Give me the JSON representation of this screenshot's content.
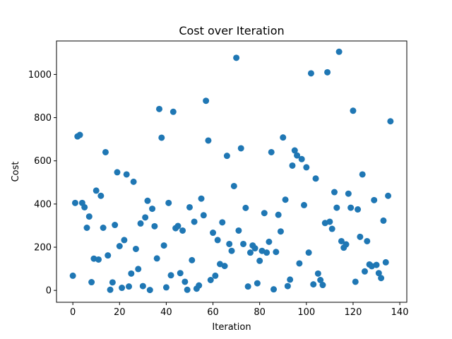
{
  "chart_data": {
    "type": "scatter",
    "title": "Cost over Iteration",
    "xlabel": "Iteration",
    "ylabel": "Cost",
    "xlim": [
      -7,
      143
    ],
    "ylim": [
      -55,
      1155
    ],
    "xticks": [
      0,
      20,
      40,
      60,
      80,
      100,
      120,
      140
    ],
    "yticks": [
      0,
      200,
      400,
      600,
      800,
      1000
    ],
    "grid": false,
    "marker_color": "#1f77b4",
    "series": [
      {
        "points": [
          [
            0,
            68
          ],
          [
            1,
            405
          ],
          [
            2,
            713
          ],
          [
            3,
            720
          ],
          [
            4,
            405
          ],
          [
            5,
            385
          ],
          [
            6,
            290
          ],
          [
            7,
            342
          ],
          [
            8,
            38
          ],
          [
            9,
            147
          ],
          [
            10,
            462
          ],
          [
            11,
            143
          ],
          [
            12,
            438
          ],
          [
            13,
            290
          ],
          [
            14,
            640
          ],
          [
            15,
            162
          ],
          [
            16,
            3
          ],
          [
            17,
            37
          ],
          [
            18,
            303
          ],
          [
            19,
            547
          ],
          [
            20,
            205
          ],
          [
            21,
            12
          ],
          [
            22,
            233
          ],
          [
            23,
            537
          ],
          [
            24,
            18
          ],
          [
            25,
            78
          ],
          [
            26,
            503
          ],
          [
            27,
            192
          ],
          [
            28,
            99
          ],
          [
            29,
            310
          ],
          [
            30,
            20
          ],
          [
            31,
            338
          ],
          [
            32,
            415
          ],
          [
            33,
            2
          ],
          [
            34,
            378
          ],
          [
            35,
            297
          ],
          [
            36,
            148
          ],
          [
            37,
            840
          ],
          [
            38,
            707
          ],
          [
            39,
            208
          ],
          [
            40,
            14
          ],
          [
            41,
            405
          ],
          [
            42,
            70
          ],
          [
            43,
            827
          ],
          [
            44,
            288
          ],
          [
            45,
            298
          ],
          [
            46,
            80
          ],
          [
            47,
            277
          ],
          [
            48,
            40
          ],
          [
            49,
            3
          ],
          [
            50,
            385
          ],
          [
            51,
            140
          ],
          [
            52,
            318
          ],
          [
            53,
            8
          ],
          [
            54,
            23
          ],
          [
            55,
            425
          ],
          [
            56,
            348
          ],
          [
            57,
            878
          ],
          [
            58,
            694
          ],
          [
            59,
            48
          ],
          [
            60,
            267
          ],
          [
            61,
            68
          ],
          [
            62,
            233
          ],
          [
            63,
            122
          ],
          [
            64,
            315
          ],
          [
            65,
            113
          ],
          [
            66,
            623
          ],
          [
            67,
            215
          ],
          [
            68,
            183
          ],
          [
            69,
            483
          ],
          [
            70,
            1077
          ],
          [
            71,
            277
          ],
          [
            72,
            658
          ],
          [
            73,
            215
          ],
          [
            74,
            382
          ],
          [
            75,
            18
          ],
          [
            76,
            175
          ],
          [
            77,
            208
          ],
          [
            78,
            195
          ],
          [
            79,
            33
          ],
          [
            80,
            137
          ],
          [
            81,
            183
          ],
          [
            82,
            358
          ],
          [
            83,
            175
          ],
          [
            84,
            225
          ],
          [
            85,
            640
          ],
          [
            86,
            5
          ],
          [
            87,
            178
          ],
          [
            88,
            350
          ],
          [
            89,
            273
          ],
          [
            90,
            708
          ],
          [
            91,
            420
          ],
          [
            92,
            20
          ],
          [
            93,
            50
          ],
          [
            94,
            578
          ],
          [
            95,
            648
          ],
          [
            96,
            625
          ],
          [
            97,
            125
          ],
          [
            98,
            608
          ],
          [
            99,
            395
          ],
          [
            100,
            570
          ],
          [
            101,
            175
          ],
          [
            102,
            1005
          ],
          [
            103,
            28
          ],
          [
            104,
            518
          ],
          [
            105,
            78
          ],
          [
            106,
            48
          ],
          [
            107,
            25
          ],
          [
            108,
            312
          ],
          [
            109,
            1010
          ],
          [
            110,
            318
          ],
          [
            111,
            285
          ],
          [
            112,
            455
          ],
          [
            113,
            383
          ],
          [
            114,
            1105
          ],
          [
            115,
            228
          ],
          [
            116,
            198
          ],
          [
            117,
            213
          ],
          [
            118,
            448
          ],
          [
            119,
            383
          ],
          [
            120,
            832
          ],
          [
            121,
            40
          ],
          [
            122,
            375
          ],
          [
            123,
            248
          ],
          [
            124,
            537
          ],
          [
            125,
            88
          ],
          [
            126,
            228
          ],
          [
            127,
            120
          ],
          [
            128,
            112
          ],
          [
            129,
            418
          ],
          [
            130,
            118
          ],
          [
            131,
            80
          ],
          [
            132,
            57
          ],
          [
            133,
            323
          ],
          [
            134,
            130
          ],
          [
            135,
            438
          ],
          [
            136,
            783
          ]
        ]
      }
    ]
  }
}
